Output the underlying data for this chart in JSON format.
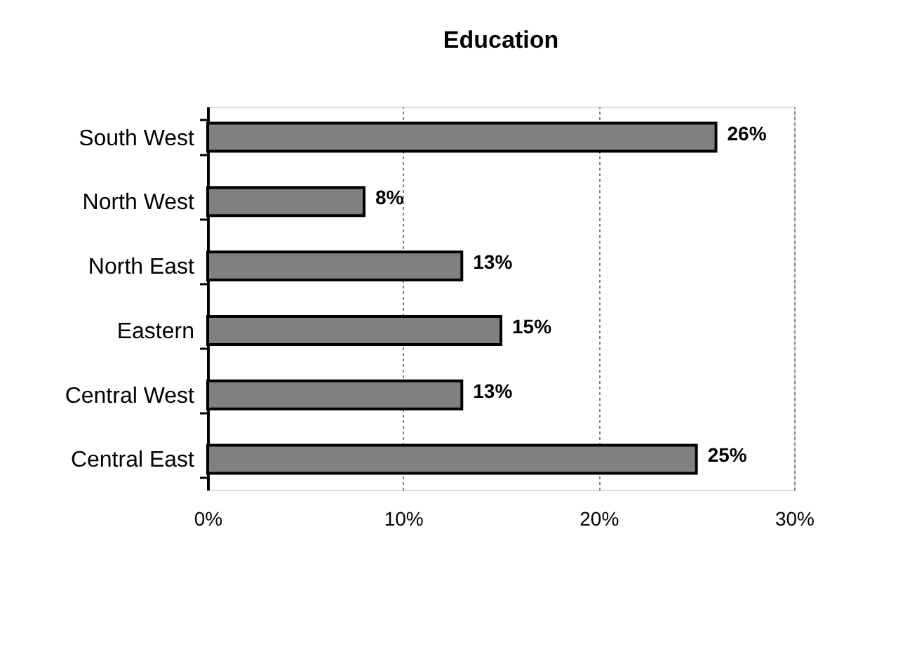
{
  "chart_data": {
    "type": "bar",
    "orientation": "horizontal",
    "title": "Education",
    "categories": [
      "South West",
      "North West",
      "North East",
      "Eastern",
      "Central West",
      "Central East"
    ],
    "values": [
      26,
      8,
      13,
      15,
      13,
      25
    ],
    "value_labels": [
      "26%",
      "8%",
      "13%",
      "15%",
      "13%",
      "25%"
    ],
    "color": "#808080",
    "xlim": [
      0,
      30
    ],
    "xticks": [
      {
        "value": 0,
        "label": "0%"
      },
      {
        "value": 10,
        "label": "10%"
      },
      {
        "value": 20,
        "label": "20%"
      },
      {
        "value": 30,
        "label": "30%"
      }
    ],
    "grid": "x"
  }
}
